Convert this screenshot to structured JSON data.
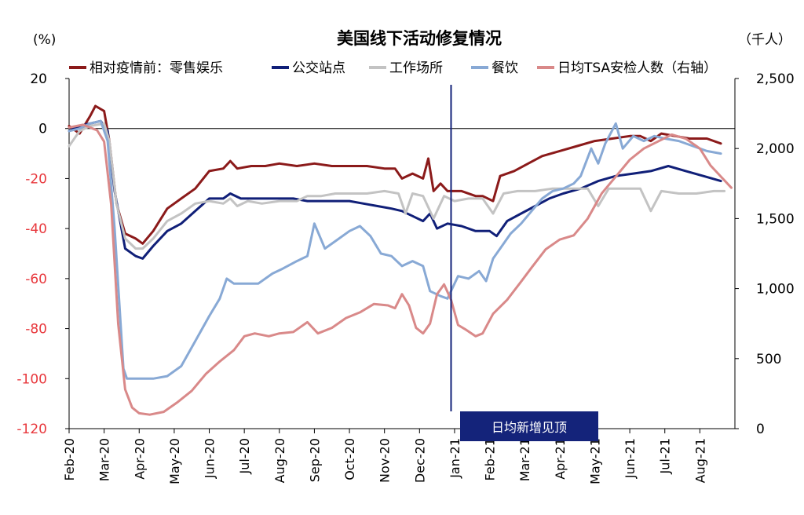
{
  "chart_data": {
    "type": "line",
    "title": "美国线下活动修复情况",
    "left_unit": "(%)",
    "right_unit": "（千人）",
    "x_labels": [
      "Feb-20",
      "Mar-20",
      "Apr-20",
      "May-20",
      "Jun-20",
      "Jul-20",
      "Aug-20",
      "Sep-20",
      "Oct-20",
      "Nov-20",
      "Dec-20",
      "Jan-21",
      "Feb-21",
      "Mar-21",
      "Apr-21",
      "May-21",
      "Jun-21",
      "Jul-21",
      "Aug-21"
    ],
    "x_range": [
      0,
      19
    ],
    "y_left": {
      "range": [
        -120,
        20
      ],
      "ticks": [
        20,
        0,
        -20,
        -40,
        -60,
        -80,
        -100,
        -120
      ]
    },
    "y_right": {
      "range": [
        0,
        2500
      ],
      "ticks": [
        "2,500",
        "2,000",
        "1,500",
        "1,000",
        "500",
        "0"
      ],
      "tick_values": [
        2500,
        2000,
        1500,
        1000,
        500,
        0
      ]
    },
    "grid": false,
    "legend_position": "top",
    "annotation": {
      "x": 10.9,
      "label": "日均新增见顶",
      "color": "#14237a"
    },
    "series": [
      {
        "name": "相对疫情前：零售娱乐",
        "axis": "left",
        "color": "#8b1a1a",
        "points": [
          [
            0,
            1
          ],
          [
            0.3,
            -2
          ],
          [
            0.6,
            5
          ],
          [
            0.75,
            9
          ],
          [
            1.0,
            7
          ],
          [
            1.15,
            -5
          ],
          [
            1.35,
            -30
          ],
          [
            1.6,
            -42
          ],
          [
            1.9,
            -44
          ],
          [
            2.1,
            -46
          ],
          [
            2.4,
            -41
          ],
          [
            2.8,
            -32
          ],
          [
            3.2,
            -28
          ],
          [
            3.6,
            -24
          ],
          [
            4.0,
            -17
          ],
          [
            4.4,
            -16
          ],
          [
            4.6,
            -13
          ],
          [
            4.8,
            -16
          ],
          [
            5.2,
            -15
          ],
          [
            5.6,
            -15
          ],
          [
            6.0,
            -14
          ],
          [
            6.5,
            -15
          ],
          [
            7.0,
            -14
          ],
          [
            7.5,
            -15
          ],
          [
            8.0,
            -15
          ],
          [
            8.5,
            -15
          ],
          [
            9.0,
            -16
          ],
          [
            9.3,
            -16
          ],
          [
            9.5,
            -20
          ],
          [
            9.8,
            -18
          ],
          [
            10.1,
            -20
          ],
          [
            10.25,
            -12
          ],
          [
            10.4,
            -25
          ],
          [
            10.6,
            -22
          ],
          [
            10.8,
            -25
          ],
          [
            11.2,
            -25
          ],
          [
            11.6,
            -27
          ],
          [
            11.8,
            -27
          ],
          [
            12.1,
            -29
          ],
          [
            12.3,
            -19
          ],
          [
            12.7,
            -17
          ],
          [
            13.1,
            -14
          ],
          [
            13.5,
            -11
          ],
          [
            14.0,
            -9
          ],
          [
            14.5,
            -7
          ],
          [
            15.0,
            -5
          ],
          [
            15.5,
            -4
          ],
          [
            16.0,
            -3
          ],
          [
            16.3,
            -3
          ],
          [
            16.6,
            -5
          ],
          [
            16.9,
            -2
          ],
          [
            17.3,
            -3
          ],
          [
            17.7,
            -4
          ],
          [
            18.2,
            -4
          ],
          [
            18.6,
            -6
          ]
        ]
      },
      {
        "name": "公交站点",
        "axis": "left",
        "color": "#101f78",
        "points": [
          [
            0,
            -1
          ],
          [
            0.3,
            1
          ],
          [
            0.6,
            2
          ],
          [
            0.9,
            3
          ],
          [
            1.1,
            -1
          ],
          [
            1.3,
            -25
          ],
          [
            1.6,
            -48
          ],
          [
            1.9,
            -51
          ],
          [
            2.1,
            -52
          ],
          [
            2.4,
            -47
          ],
          [
            2.8,
            -41
          ],
          [
            3.2,
            -38
          ],
          [
            3.6,
            -33
          ],
          [
            4.0,
            -28
          ],
          [
            4.4,
            -28
          ],
          [
            4.6,
            -26
          ],
          [
            4.9,
            -28
          ],
          [
            5.4,
            -28
          ],
          [
            5.9,
            -28
          ],
          [
            6.4,
            -28
          ],
          [
            6.8,
            -29
          ],
          [
            7.2,
            -29
          ],
          [
            7.6,
            -29
          ],
          [
            8.0,
            -29
          ],
          [
            8.4,
            -30
          ],
          [
            8.8,
            -31
          ],
          [
            9.2,
            -32
          ],
          [
            9.5,
            -33
          ],
          [
            9.8,
            -35
          ],
          [
            10.1,
            -37
          ],
          [
            10.3,
            -34
          ],
          [
            10.5,
            -40
          ],
          [
            10.8,
            -38
          ],
          [
            11.2,
            -39
          ],
          [
            11.6,
            -41
          ],
          [
            12.0,
            -41
          ],
          [
            12.2,
            -43
          ],
          [
            12.5,
            -37
          ],
          [
            12.9,
            -34
          ],
          [
            13.3,
            -31
          ],
          [
            13.7,
            -28
          ],
          [
            14.1,
            -26
          ],
          [
            14.6,
            -24
          ],
          [
            15.1,
            -21
          ],
          [
            15.6,
            -19
          ],
          [
            16.1,
            -18
          ],
          [
            16.6,
            -17
          ],
          [
            17.1,
            -15
          ],
          [
            17.6,
            -17
          ],
          [
            18.1,
            -19
          ],
          [
            18.6,
            -21
          ]
        ]
      },
      {
        "name": "工作场所",
        "axis": "left",
        "color": "#c3c3c3",
        "points": [
          [
            0,
            -7
          ],
          [
            0.3,
            -1
          ],
          [
            0.6,
            1
          ],
          [
            1.0,
            2
          ],
          [
            1.15,
            -5
          ],
          [
            1.35,
            -30
          ],
          [
            1.6,
            -44
          ],
          [
            1.9,
            -48
          ],
          [
            2.1,
            -48
          ],
          [
            2.4,
            -44
          ],
          [
            2.8,
            -37
          ],
          [
            3.2,
            -34
          ],
          [
            3.6,
            -30
          ],
          [
            4.0,
            -29
          ],
          [
            4.4,
            -30
          ],
          [
            4.6,
            -28
          ],
          [
            4.8,
            -31
          ],
          [
            5.1,
            -29
          ],
          [
            5.5,
            -30
          ],
          [
            6.0,
            -29
          ],
          [
            6.5,
            -29
          ],
          [
            6.8,
            -27
          ],
          [
            7.2,
            -27
          ],
          [
            7.6,
            -26
          ],
          [
            8.0,
            -26
          ],
          [
            8.5,
            -26
          ],
          [
            9.0,
            -25
          ],
          [
            9.4,
            -26
          ],
          [
            9.6,
            -34
          ],
          [
            9.8,
            -26
          ],
          [
            10.1,
            -27
          ],
          [
            10.4,
            -36
          ],
          [
            10.7,
            -27
          ],
          [
            11.0,
            -29
          ],
          [
            11.4,
            -28
          ],
          [
            11.8,
            -28
          ],
          [
            12.1,
            -34
          ],
          [
            12.4,
            -26
          ],
          [
            12.8,
            -25
          ],
          [
            13.3,
            -25
          ],
          [
            13.8,
            -24
          ],
          [
            14.3,
            -24
          ],
          [
            14.8,
            -24
          ],
          [
            15.1,
            -31
          ],
          [
            15.4,
            -24
          ],
          [
            15.9,
            -24
          ],
          [
            16.3,
            -24
          ],
          [
            16.6,
            -33
          ],
          [
            16.9,
            -25
          ],
          [
            17.4,
            -26
          ],
          [
            17.9,
            -26
          ],
          [
            18.4,
            -25
          ],
          [
            18.7,
            -25
          ]
        ]
      },
      {
        "name": "餐饮",
        "axis": "left",
        "color": "#88a9d5",
        "points": [
          [
            0,
            -1
          ],
          [
            0.3,
            0
          ],
          [
            0.6,
            2
          ],
          [
            0.9,
            3
          ],
          [
            1.1,
            -5
          ],
          [
            1.3,
            -40
          ],
          [
            1.55,
            -96
          ],
          [
            1.65,
            -100
          ],
          [
            2.0,
            -100
          ],
          [
            2.4,
            -100
          ],
          [
            2.8,
            -99
          ],
          [
            3.2,
            -95
          ],
          [
            3.6,
            -85
          ],
          [
            4.0,
            -75
          ],
          [
            4.3,
            -68
          ],
          [
            4.5,
            -60
          ],
          [
            4.7,
            -62
          ],
          [
            5.0,
            -62
          ],
          [
            5.4,
            -62
          ],
          [
            5.8,
            -58
          ],
          [
            6.1,
            -56
          ],
          [
            6.5,
            -53
          ],
          [
            6.8,
            -51
          ],
          [
            7.0,
            -38
          ],
          [
            7.3,
            -48
          ],
          [
            7.6,
            -45
          ],
          [
            8.0,
            -41
          ],
          [
            8.3,
            -39
          ],
          [
            8.6,
            -43
          ],
          [
            8.9,
            -50
          ],
          [
            9.2,
            -51
          ],
          [
            9.5,
            -55
          ],
          [
            9.8,
            -53
          ],
          [
            10.1,
            -55
          ],
          [
            10.3,
            -65
          ],
          [
            10.6,
            -67
          ],
          [
            10.8,
            -68
          ],
          [
            11.1,
            -59
          ],
          [
            11.4,
            -60
          ],
          [
            11.7,
            -57
          ],
          [
            11.9,
            -61
          ],
          [
            12.1,
            -52
          ],
          [
            12.3,
            -48
          ],
          [
            12.6,
            -42
          ],
          [
            12.9,
            -38
          ],
          [
            13.2,
            -33
          ],
          [
            13.5,
            -28
          ],
          [
            13.8,
            -25
          ],
          [
            14.1,
            -24
          ],
          [
            14.4,
            -22
          ],
          [
            14.6,
            -19
          ],
          [
            14.9,
            -8
          ],
          [
            15.1,
            -14
          ],
          [
            15.3,
            -6
          ],
          [
            15.6,
            2
          ],
          [
            15.8,
            -8
          ],
          [
            16.1,
            -3
          ],
          [
            16.4,
            -5
          ],
          [
            16.7,
            -3
          ],
          [
            17.0,
            -4
          ],
          [
            17.4,
            -5
          ],
          [
            17.8,
            -7
          ],
          [
            18.2,
            -9
          ],
          [
            18.6,
            -10
          ]
        ]
      },
      {
        "name": "日均TSA安检人数（右轴）",
        "axis": "right",
        "color": "#d98989",
        "points": [
          [
            0,
            2150
          ],
          [
            0.4,
            2170
          ],
          [
            0.8,
            2130
          ],
          [
            1.0,
            2050
          ],
          [
            1.2,
            1600
          ],
          [
            1.4,
            750
          ],
          [
            1.6,
            280
          ],
          [
            1.8,
            150
          ],
          [
            2.0,
            110
          ],
          [
            2.3,
            100
          ],
          [
            2.7,
            120
          ],
          [
            3.1,
            190
          ],
          [
            3.5,
            270
          ],
          [
            3.9,
            390
          ],
          [
            4.3,
            480
          ],
          [
            4.7,
            560
          ],
          [
            5.0,
            660
          ],
          [
            5.3,
            680
          ],
          [
            5.7,
            660
          ],
          [
            6.0,
            680
          ],
          [
            6.4,
            690
          ],
          [
            6.8,
            760
          ],
          [
            7.1,
            680
          ],
          [
            7.5,
            720
          ],
          [
            7.9,
            790
          ],
          [
            8.3,
            830
          ],
          [
            8.7,
            890
          ],
          [
            9.1,
            880
          ],
          [
            9.3,
            860
          ],
          [
            9.5,
            960
          ],
          [
            9.7,
            880
          ],
          [
            9.9,
            720
          ],
          [
            10.1,
            680
          ],
          [
            10.3,
            750
          ],
          [
            10.5,
            960
          ],
          [
            10.7,
            1030
          ],
          [
            10.9,
            920
          ],
          [
            11.1,
            740
          ],
          [
            11.3,
            710
          ],
          [
            11.6,
            660
          ],
          [
            11.8,
            680
          ],
          [
            12.1,
            820
          ],
          [
            12.5,
            920
          ],
          [
            12.9,
            1050
          ],
          [
            13.2,
            1150
          ],
          [
            13.6,
            1280
          ],
          [
            14.0,
            1350
          ],
          [
            14.4,
            1380
          ],
          [
            14.8,
            1500
          ],
          [
            15.2,
            1680
          ],
          [
            15.6,
            1800
          ],
          [
            16.0,
            1920
          ],
          [
            16.4,
            2000
          ],
          [
            16.8,
            2050
          ],
          [
            17.2,
            2100
          ],
          [
            17.6,
            2070
          ],
          [
            18.0,
            2000
          ],
          [
            18.3,
            1880
          ],
          [
            18.6,
            1800
          ],
          [
            18.9,
            1720
          ]
        ]
      }
    ]
  }
}
